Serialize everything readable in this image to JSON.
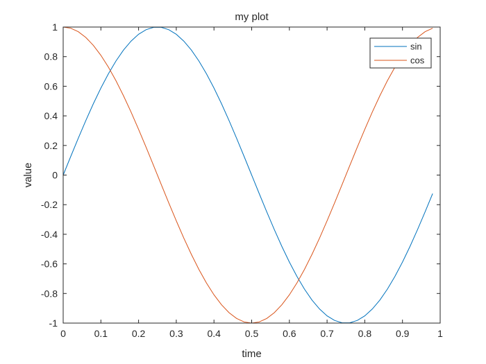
{
  "chart_data": {
    "type": "line",
    "title": "my plot",
    "xlabel": "time",
    "ylabel": "value",
    "xlim": [
      0,
      1
    ],
    "ylim": [
      -1,
      1
    ],
    "xticks": [
      "0",
      "0.1",
      "0.2",
      "0.3",
      "0.4",
      "0.5",
      "0.6",
      "0.7",
      "0.8",
      "0.9",
      "1"
    ],
    "yticks": [
      "1",
      "0.8",
      "0.6",
      "0.4",
      "0.2",
      "0",
      "-0.2",
      "-0.4",
      "-0.6",
      "-0.8",
      "-1"
    ],
    "grid": false,
    "legend_position": "top-right",
    "x": [
      0,
      0.02,
      0.04,
      0.06,
      0.08,
      0.1,
      0.12,
      0.14,
      0.16,
      0.18,
      0.2,
      0.22,
      0.24,
      0.26,
      0.28,
      0.3,
      0.32,
      0.34,
      0.36,
      0.38,
      0.4,
      0.42,
      0.44,
      0.46,
      0.48,
      0.5,
      0.52,
      0.54,
      0.56,
      0.58,
      0.6,
      0.62,
      0.64,
      0.66,
      0.68,
      0.7,
      0.72,
      0.74,
      0.76,
      0.78,
      0.8,
      0.82,
      0.84,
      0.86,
      0.88,
      0.9,
      0.92,
      0.94,
      0.96,
      0.98
    ],
    "series": [
      {
        "name": "sin",
        "color": "#0072BD",
        "values": [
          0,
          0.1253,
          0.2487,
          0.3681,
          0.4818,
          0.5878,
          0.6845,
          0.7705,
          0.8443,
          0.9048,
          0.9511,
          0.9823,
          0.998,
          0.998,
          0.9823,
          0.9511,
          0.9048,
          0.8443,
          0.7705,
          0.6845,
          0.5878,
          0.4818,
          0.3681,
          0.2487,
          0.1253,
          0,
          -0.1253,
          -0.2487,
          -0.3681,
          -0.4818,
          -0.5878,
          -0.6845,
          -0.7705,
          -0.8443,
          -0.9048,
          -0.9511,
          -0.9823,
          -0.998,
          -0.998,
          -0.9823,
          -0.9511,
          -0.9048,
          -0.8443,
          -0.7705,
          -0.6845,
          -0.5878,
          -0.4818,
          -0.3681,
          -0.2487,
          -0.1253
        ]
      },
      {
        "name": "cos",
        "color": "#D95319",
        "values": [
          1,
          0.9921,
          0.9686,
          0.9298,
          0.8763,
          0.809,
          0.729,
          0.6374,
          0.5358,
          0.4258,
          0.309,
          0.1874,
          0.0628,
          -0.0628,
          -0.1874,
          -0.309,
          -0.4258,
          -0.5358,
          -0.6374,
          -0.729,
          -0.809,
          -0.8763,
          -0.9298,
          -0.9686,
          -0.9921,
          -1,
          -0.9921,
          -0.9686,
          -0.9298,
          -0.8763,
          -0.809,
          -0.729,
          -0.6374,
          -0.5358,
          -0.4258,
          -0.309,
          -0.1874,
          -0.0628,
          0.0628,
          0.1874,
          0.309,
          0.4258,
          0.5358,
          0.6374,
          0.729,
          0.809,
          0.8763,
          0.9298,
          0.9686,
          0.9921
        ]
      }
    ]
  }
}
